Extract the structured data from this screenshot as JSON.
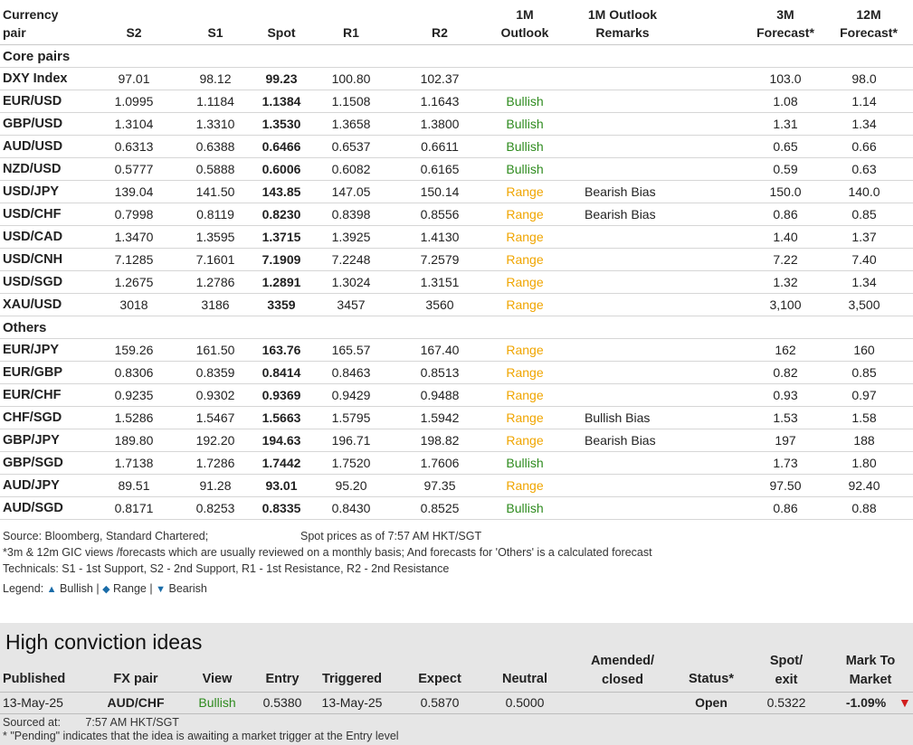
{
  "headers": {
    "pair": [
      "Currency",
      "pair"
    ],
    "s2": "S2",
    "s1": "S1",
    "spot": "Spot",
    "r1": "R1",
    "r2": "R2",
    "outlook": [
      "1M",
      "Outlook"
    ],
    "remarks": [
      "1M Outlook",
      "Remarks"
    ],
    "f3": [
      "3M",
      "Forecast*"
    ],
    "f12": [
      "12M",
      "Forecast*"
    ]
  },
  "sections": [
    {
      "title": "Core pairs",
      "rows": [
        {
          "pair": "DXY Index",
          "s2": "97.01",
          "s1": "98.12",
          "spot": "99.23",
          "r1": "100.80",
          "r2": "102.37",
          "outlook": "",
          "remarks": "",
          "f3": "103.0",
          "f12": "98.0"
        },
        {
          "pair": "EUR/USD",
          "s2": "1.0995",
          "s1": "1.1184",
          "spot": "1.1384",
          "r1": "1.1508",
          "r2": "1.1643",
          "outlook": "Bullish",
          "remarks": "",
          "f3": "1.08",
          "f12": "1.14"
        },
        {
          "pair": "GBP/USD",
          "s2": "1.3104",
          "s1": "1.3310",
          "spot": "1.3530",
          "r1": "1.3658",
          "r2": "1.3800",
          "outlook": "Bullish",
          "remarks": "",
          "f3": "1.31",
          "f12": "1.34"
        },
        {
          "pair": "AUD/USD",
          "s2": "0.6313",
          "s1": "0.6388",
          "spot": "0.6466",
          "r1": "0.6537",
          "r2": "0.6611",
          "outlook": "Bullish",
          "remarks": "",
          "f3": "0.65",
          "f12": "0.66"
        },
        {
          "pair": "NZD/USD",
          "s2": "0.5777",
          "s1": "0.5888",
          "spot": "0.6006",
          "r1": "0.6082",
          "r2": "0.6165",
          "outlook": "Bullish",
          "remarks": "",
          "f3": "0.59",
          "f12": "0.63"
        },
        {
          "pair": "USD/JPY",
          "s2": "139.04",
          "s1": "141.50",
          "spot": "143.85",
          "r1": "147.05",
          "r2": "150.14",
          "outlook": "Range",
          "remarks": "Bearish Bias",
          "f3": "150.0",
          "f12": "140.0"
        },
        {
          "pair": "USD/CHF",
          "s2": "0.7998",
          "s1": "0.8119",
          "spot": "0.8230",
          "r1": "0.8398",
          "r2": "0.8556",
          "outlook": "Range",
          "remarks": "Bearish Bias",
          "f3": "0.86",
          "f12": "0.85"
        },
        {
          "pair": "USD/CAD",
          "s2": "1.3470",
          "s1": "1.3595",
          "spot": "1.3715",
          "r1": "1.3925",
          "r2": "1.4130",
          "outlook": "Range",
          "remarks": "",
          "f3": "1.40",
          "f12": "1.37"
        },
        {
          "pair": "USD/CNH",
          "s2": "7.1285",
          "s1": "7.1601",
          "spot": "7.1909",
          "r1": "7.2248",
          "r2": "7.2579",
          "outlook": "Range",
          "remarks": "",
          "f3": "7.22",
          "f12": "7.40"
        },
        {
          "pair": "USD/SGD",
          "s2": "1.2675",
          "s1": "1.2786",
          "spot": "1.2891",
          "r1": "1.3024",
          "r2": "1.3151",
          "outlook": "Range",
          "remarks": "",
          "f3": "1.32",
          "f12": "1.34"
        },
        {
          "pair": "XAU/USD",
          "s2": "3018",
          "s1": "3186",
          "spot": "3359",
          "r1": "3457",
          "r2": "3560",
          "outlook": "Range",
          "remarks": "",
          "f3": "3,100",
          "f12": "3,500"
        }
      ]
    },
    {
      "title": "Others",
      "rows": [
        {
          "pair": "EUR/JPY",
          "s2": "159.26",
          "s1": "161.50",
          "spot": "163.76",
          "r1": "165.57",
          "r2": "167.40",
          "outlook": "Range",
          "remarks": "",
          "f3": "162",
          "f12": "160"
        },
        {
          "pair": "EUR/GBP",
          "s2": "0.8306",
          "s1": "0.8359",
          "spot": "0.8414",
          "r1": "0.8463",
          "r2": "0.8513",
          "outlook": "Range",
          "remarks": "",
          "f3": "0.82",
          "f12": "0.85"
        },
        {
          "pair": "EUR/CHF",
          "s2": "0.9235",
          "s1": "0.9302",
          "spot": "0.9369",
          "r1": "0.9429",
          "r2": "0.9488",
          "outlook": "Range",
          "remarks": "",
          "f3": "0.93",
          "f12": "0.97"
        },
        {
          "pair": "CHF/SGD",
          "s2": "1.5286",
          "s1": "1.5467",
          "spot": "1.5663",
          "r1": "1.5795",
          "r2": "1.5942",
          "outlook": "Range",
          "remarks": "Bullish Bias",
          "f3": "1.53",
          "f12": "1.58"
        },
        {
          "pair": "GBP/JPY",
          "s2": "189.80",
          "s1": "192.20",
          "spot": "194.63",
          "r1": "196.71",
          "r2": "198.82",
          "outlook": "Range",
          "remarks": "Bearish Bias",
          "f3": "197",
          "f12": "188"
        },
        {
          "pair": "GBP/SGD",
          "s2": "1.7138",
          "s1": "1.7286",
          "spot": "1.7442",
          "r1": "1.7520",
          "r2": "1.7606",
          "outlook": "Bullish",
          "remarks": "",
          "f3": "1.73",
          "f12": "1.80"
        },
        {
          "pair": "AUD/JPY",
          "s2": "89.51",
          "s1": "91.28",
          "spot": "93.01",
          "r1": "95.20",
          "r2": "97.35",
          "outlook": "Range",
          "remarks": "",
          "f3": "97.50",
          "f12": "92.40"
        },
        {
          "pair": "AUD/SGD",
          "s2": "0.8171",
          "s1": "0.8253",
          "spot": "0.8335",
          "r1": "0.8430",
          "r2": "0.8525",
          "outlook": "Bullish",
          "remarks": "",
          "f3": "0.86",
          "f12": "0.88"
        }
      ]
    }
  ],
  "notes": {
    "source": "Source: Bloomberg, Standard Chartered;",
    "spot_time": "Spot prices as of 7:57 AM HKT/SGT",
    "footnote": "*3m & 12m GIC views /forecasts which are usually reviewed on a monthly basis; And forecasts for 'Others' is a calculated forecast",
    "technicals": "Technicals: S1 - 1st Support, S2 - 2nd Support, R1 - 1st Resistance, R2 - 2nd Resistance",
    "legend_label": "Legend:",
    "legend_bullish": "Bullish",
    "legend_range": "Range",
    "legend_bearish": "Bearish",
    "legend_sep": "|"
  },
  "hci": {
    "title": "High conviction ideas",
    "headers": {
      "published": "Published",
      "pair": "FX pair",
      "view": "View",
      "entry": "Entry",
      "triggered": "Triggered",
      "expect": "Expect",
      "neutral": "Neutral",
      "amended": [
        "Amended/",
        "closed"
      ],
      "status": "Status*",
      "spot": [
        "Spot/",
        "exit"
      ],
      "mtm": [
        "Mark To",
        "Market"
      ]
    },
    "row": {
      "published": "13-May-25",
      "pair": "AUD/CHF",
      "view": "Bullish",
      "entry": "0.5380",
      "triggered": "13-May-25",
      "expect": "0.5870",
      "neutral": "0.5000",
      "amended": "",
      "status": "Open",
      "spot": "0.5322",
      "mtm": "-1.09%"
    },
    "sourced_label": "Sourced at:",
    "sourced_time": "7:57 AM HKT/SGT",
    "pending_note": "* \"Pending\" indicates that the idea is awaiting a market trigger at the Entry level"
  },
  "colors": {
    "bullish": "#2e8b1e",
    "range": "#f0a500",
    "negative": "#d11d1d",
    "legend_marker": "#1a6ca8",
    "panel_bg": "#e6e6e6"
  }
}
